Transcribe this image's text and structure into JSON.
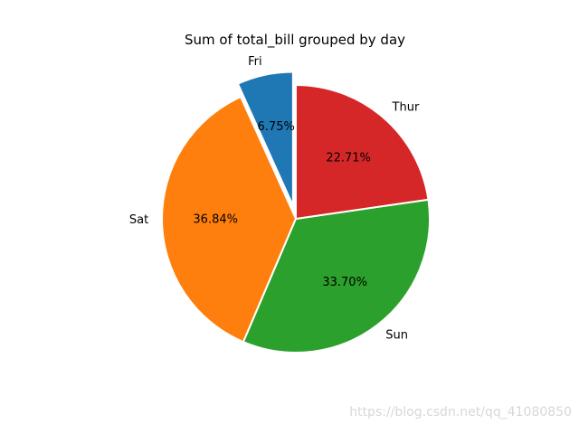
{
  "chart_data": {
    "type": "pie",
    "title": "Sum of total_bill grouped by day",
    "slices": [
      {
        "label": "Fri",
        "value": 6.75,
        "pct_label": "6.75%",
        "color": "#1f77b4",
        "explode": true
      },
      {
        "label": "Sat",
        "value": 36.84,
        "pct_label": "36.84%",
        "color": "#ff7f0e",
        "explode": false
      },
      {
        "label": "Sun",
        "value": 33.7,
        "pct_label": "33.70%",
        "color": "#2ca02c",
        "explode": false
      },
      {
        "label": "Thur",
        "value": 22.71,
        "pct_label": "22.71%",
        "color": "#d62728",
        "explode": false
      }
    ],
    "start_angle_deg": 90,
    "direction": "counterclockwise",
    "edge_color": "#ffffff",
    "legend": "none"
  },
  "watermark": "https://blog.csdn.net/qq_41080850"
}
